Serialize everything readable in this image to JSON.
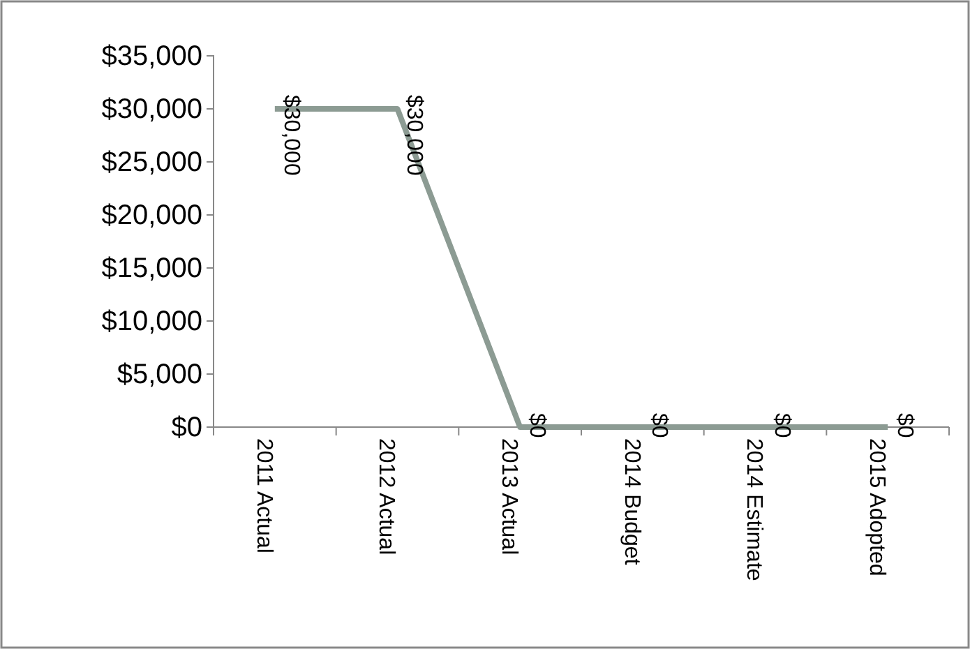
{
  "chart_data": {
    "type": "line",
    "categories": [
      "2011 Actual",
      "2012 Actual",
      "2013 Actual",
      "2014 Budget",
      "2014 Estimate",
      "2015 Adopted"
    ],
    "series": [
      {
        "color": "#8c9b93",
        "values": [
          30000,
          30000,
          0,
          0,
          0,
          0
        ],
        "value_labels": [
          "$30,000",
          "$30,000",
          "$0",
          "$0",
          "$0",
          "$0"
        ]
      }
    ],
    "ylim": [
      0,
      35000
    ],
    "yticks": [
      {
        "value": 0,
        "label": "$0"
      },
      {
        "value": 5000,
        "label": "$5,000"
      },
      {
        "value": 10000,
        "label": "$10,000"
      },
      {
        "value": 15000,
        "label": "$15,000"
      },
      {
        "value": 20000,
        "label": "$20,000"
      },
      {
        "value": 25000,
        "label": "$25,000"
      },
      {
        "value": 30000,
        "label": "$30,000"
      },
      {
        "value": 35000,
        "label": "$35,000"
      }
    ],
    "marker": "none",
    "line_style": "solid"
  }
}
